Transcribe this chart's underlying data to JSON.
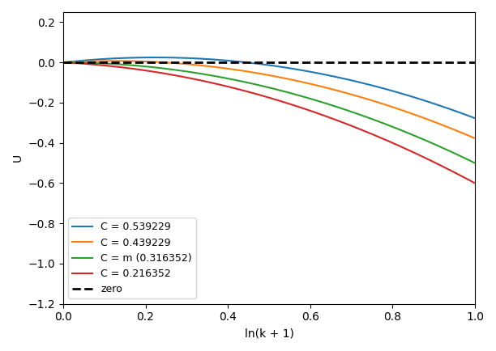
{
  "C_values": [
    0.539229,
    0.439229,
    0.316352,
    0.216352
  ],
  "C_labels": [
    "C = 0.539229",
    "C = 0.439229",
    "C = m (0.316352)",
    "C = 0.216352"
  ],
  "colors": [
    "#1f77b4",
    "#ff7f0e",
    "#2ca02c",
    "#d62728"
  ],
  "m": 0.316352,
  "x_min": 0.0,
  "x_max": 1.0,
  "n_points": 1000,
  "xlabel": "ln(k + 1)",
  "ylabel": "U",
  "zero_label": "zero",
  "ylim": [
    -1.2,
    0.25
  ],
  "xlim": [
    0.0,
    1.0
  ]
}
